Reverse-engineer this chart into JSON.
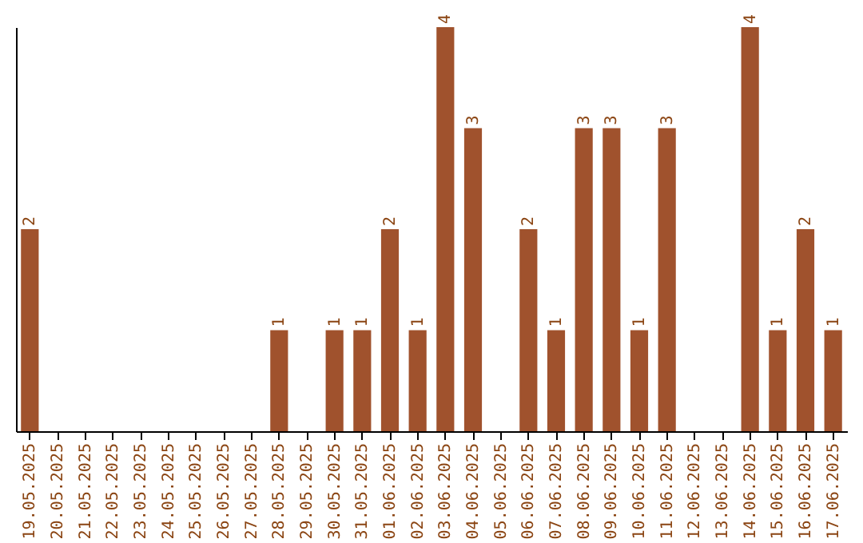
{
  "chart_data": {
    "type": "bar",
    "categories": [
      "19.05.2025",
      "20.05.2025",
      "21.05.2025",
      "22.05.2025",
      "23.05.2025",
      "24.05.2025",
      "25.05.2025",
      "26.05.2025",
      "27.05.2025",
      "28.05.2025",
      "29.05.2025",
      "30.05.2025",
      "31.05.2025",
      "01.06.2025",
      "02.06.2025",
      "03.06.2025",
      "04.06.2025",
      "05.06.2025",
      "06.06.2025",
      "07.06.2025",
      "08.06.2025",
      "09.06.2025",
      "10.06.2025",
      "11.06.2025",
      "12.06.2025",
      "13.06.2025",
      "14.06.2025",
      "15.06.2025",
      "16.06.2025",
      "17.06.2025"
    ],
    "values": [
      2,
      0,
      0,
      0,
      0,
      0,
      0,
      0,
      0,
      1,
      0,
      1,
      1,
      2,
      1,
      4,
      3,
      0,
      2,
      1,
      3,
      3,
      1,
      3,
      0,
      0,
      4,
      1,
      2,
      1
    ],
    "value_labels": [
      "2",
      null,
      null,
      null,
      null,
      null,
      null,
      null,
      null,
      "1",
      null,
      "1",
      "1",
      "2",
      "1",
      "4",
      "3",
      null,
      "2",
      "1",
      "3",
      "3",
      "1",
      "3",
      null,
      null,
      "4",
      "1",
      "2",
      "1"
    ],
    "color": "#a0522d",
    "tick_labels": "x",
    "grid": false
  }
}
